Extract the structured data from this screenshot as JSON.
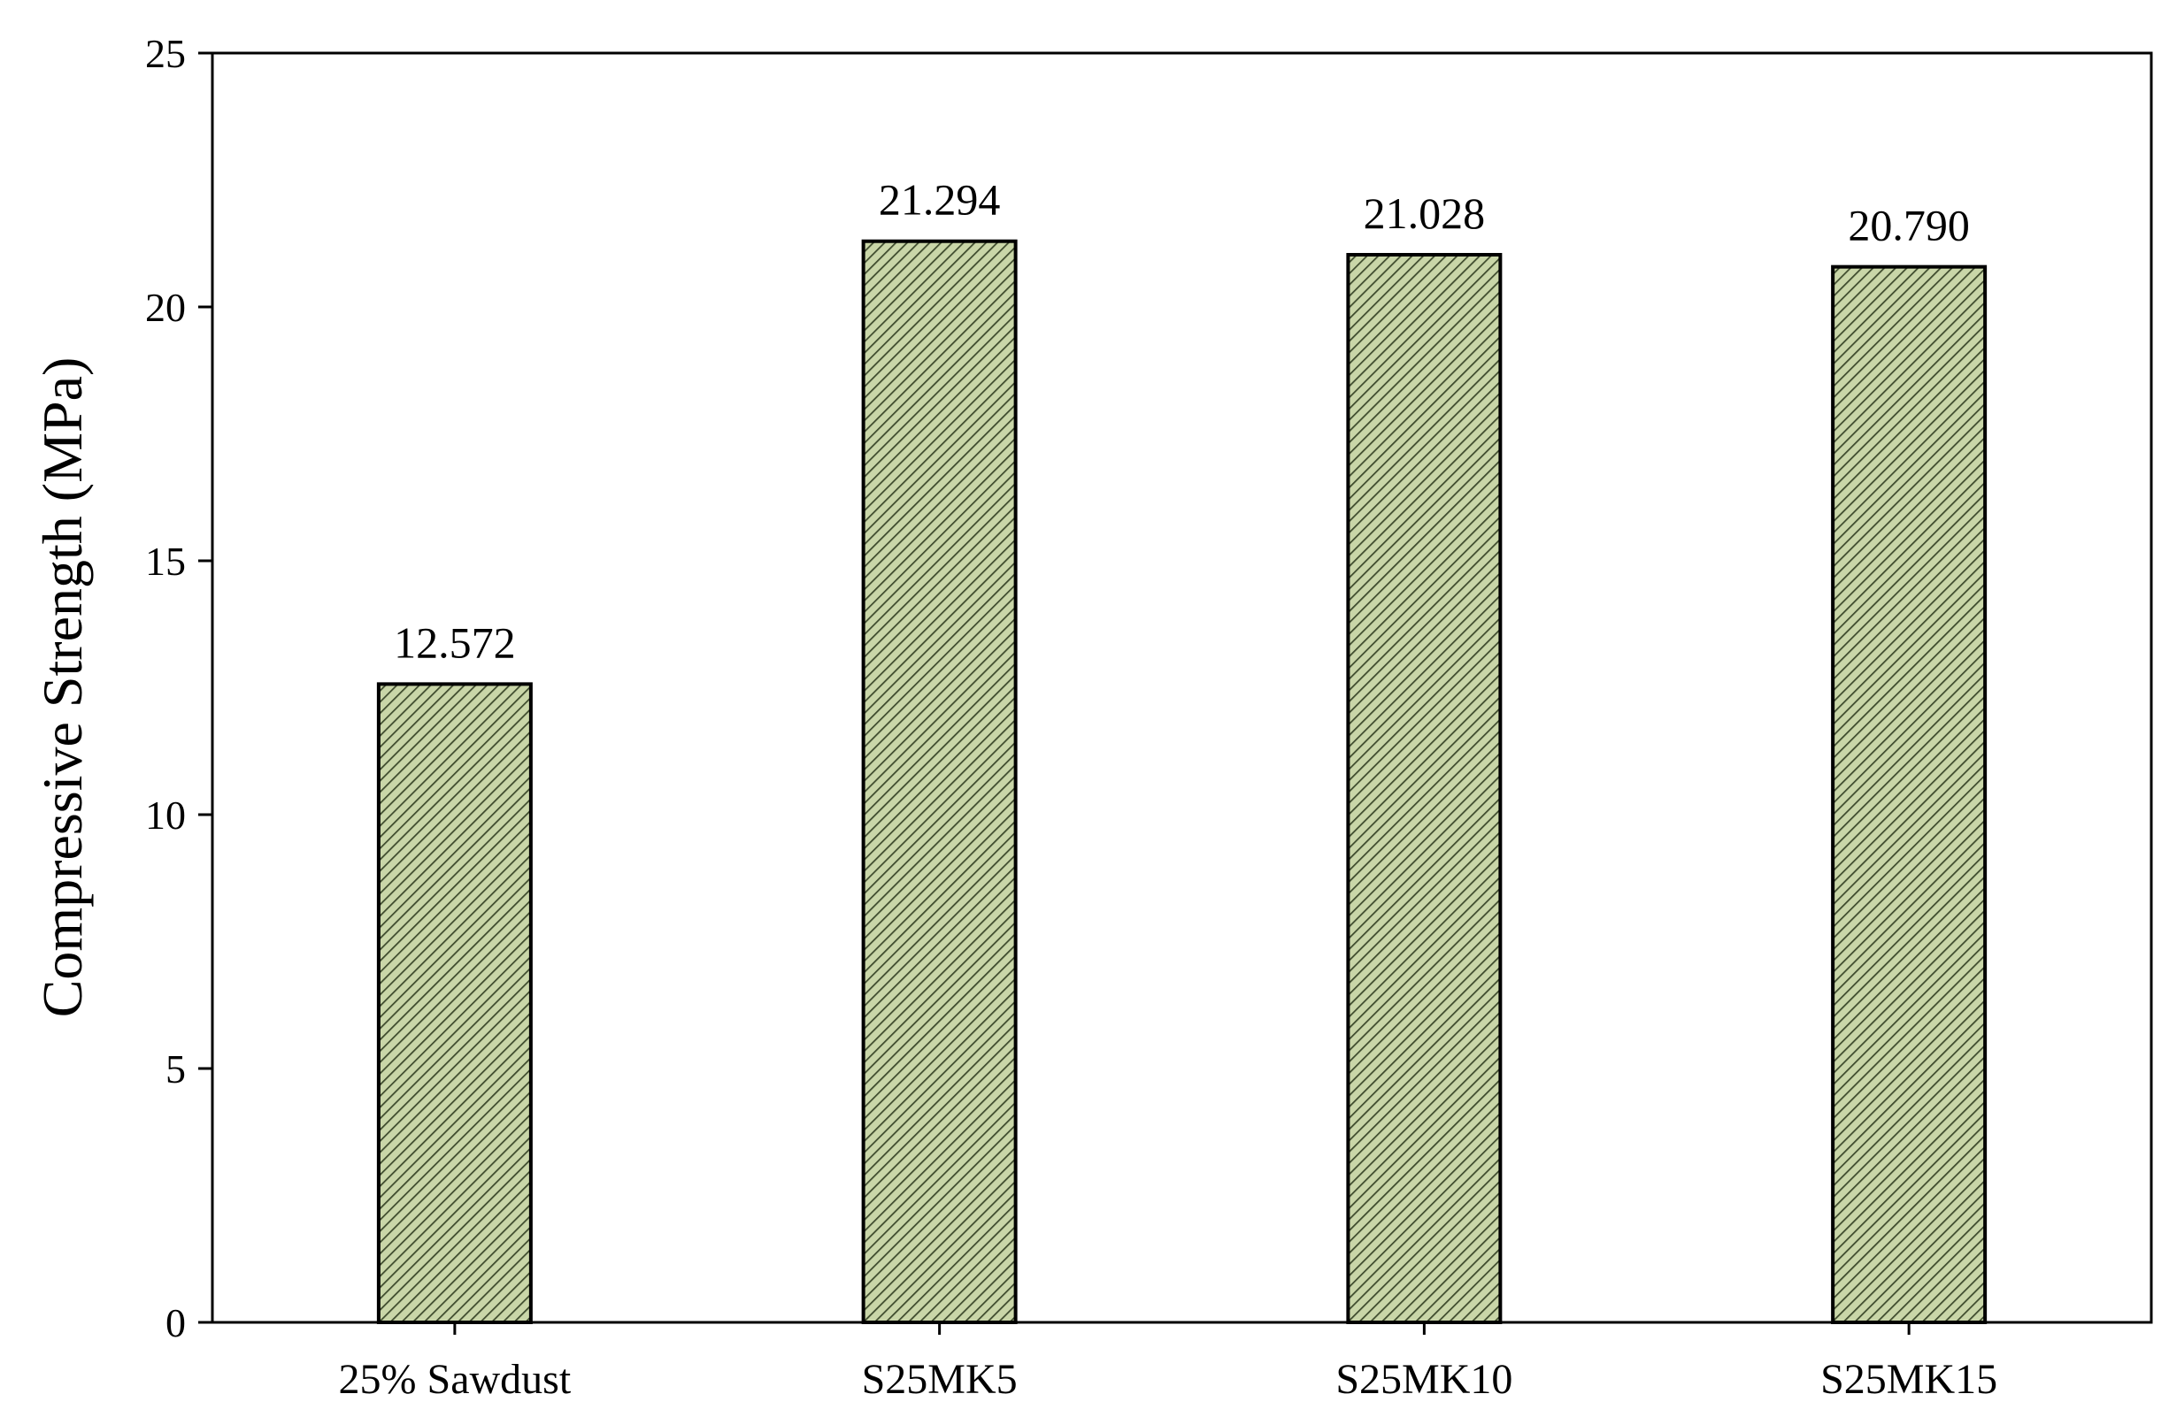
{
  "chart_data": {
    "type": "bar",
    "title": "",
    "xlabel": "",
    "ylabel": "Compressive Strength (MPa)",
    "categories": [
      "25% Sawdust",
      "S25MK5",
      "S25MK10",
      "S25MK15"
    ],
    "values": [
      12.572,
      21.294,
      21.028,
      20.79
    ],
    "data_labels": [
      "12.572",
      "21.294",
      "21.028",
      "20.790"
    ],
    "ylim": [
      0,
      25
    ],
    "yticks": [
      0,
      5,
      10,
      15,
      20,
      25
    ],
    "grid": false,
    "legend": "none",
    "bar_fill": "#c9d6a8",
    "bar_hatch": "#3d4a2c",
    "bar_edge": "#000000"
  }
}
